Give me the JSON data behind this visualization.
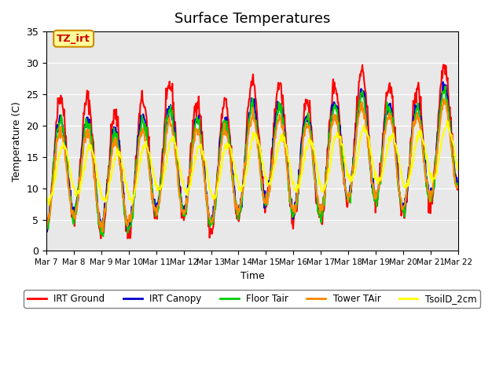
{
  "title": "Surface Temperatures",
  "xlabel": "Time",
  "ylabel": "Temperature (C)",
  "ylim": [
    0,
    35
  ],
  "annotation_text": "TZ_irt",
  "annotation_color": "#cc0000",
  "annotation_bg": "#ffff99",
  "annotation_border": "#cc8800",
  "background_color": "#e8e8e8",
  "series": [
    {
      "name": "IRT Ground",
      "color": "#ff0000",
      "lw": 1.5
    },
    {
      "name": "IRT Canopy",
      "color": "#0000cc",
      "lw": 1.5
    },
    {
      "name": "Floor Tair",
      "color": "#00cc00",
      "lw": 1.5
    },
    {
      "name": "Tower TAir",
      "color": "#ff8800",
      "lw": 1.5
    },
    {
      "name": "TsoilD_2cm",
      "color": "#ffff00",
      "lw": 1.5
    }
  ],
  "x_tick_labels": [
    "Mar 7",
    "Mar 8",
    "Mar 9",
    "Mar 10",
    "Mar 11",
    "Mar 12",
    "Mar 13",
    "Mar 14",
    "Mar 15",
    "Mar 16",
    "Mar 17",
    "Mar 18",
    "Mar 19",
    "Mar 20",
    "Mar 21",
    "Mar 22"
  ],
  "num_days": 15,
  "points_per_day": 48
}
